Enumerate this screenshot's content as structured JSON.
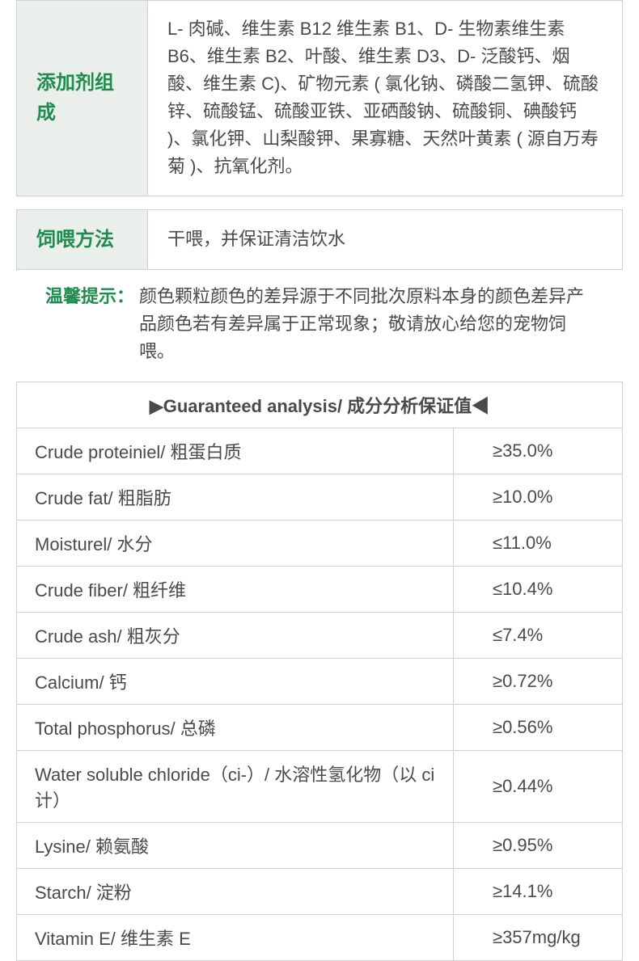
{
  "info_table_1": {
    "label": "添加剂组成",
    "value": "L- 肉碱、维生素 B12 维生素 B1、D- 生物素维生素 B6、维生素 B2、叶酸、维生素 D3、D- 泛酸钙、烟酸、维生素 C)、矿物元素 ( 氯化钠、磷酸二氢钾、硫酸锌、硫酸锰、硫酸亚铁、亚硒酸钠、硫酸铜、碘酸钙 )、氯化钾、山梨酸钾、果寡糖、天然叶黄素 ( 源自万寿菊 )、抗氧化剂。"
  },
  "info_table_2": {
    "label": "饲喂方法",
    "value": "干喂，并保证清洁饮水"
  },
  "tip": {
    "label": "温馨提示：",
    "text": "颜色颗粒颜色的差异源于不同批次原料本身的颜色差异产品颜色若有差异属于正常现象；敬请放心给您的宠物饲喂。"
  },
  "analysis": {
    "header": "▶Guaranteed analysis/ 成分分析保证值◀",
    "rows": [
      {
        "name": "Crude proteiniel/ 粗蛋白质",
        "val": "≥35.0%"
      },
      {
        "name": "Crude fat/ 粗脂肪",
        "val": "≥10.0%"
      },
      {
        "name": "Moisturel/ 水分",
        "val": "≤11.0%"
      },
      {
        "name": "Crude fiber/ 粗纤维",
        "val": "≤10.4%"
      },
      {
        "name": "Crude ash/ 粗灰分",
        "val": "≤7.4%"
      },
      {
        "name": "Calcium/ 钙",
        "val": "≥0.72%"
      },
      {
        "name": "Total phosphorus/ 总磷",
        "val": "≥0.56%"
      },
      {
        "name": "Water soluble chloride（ci-）/ 水溶性氢化物（以 ci 计）",
        "val": "≥0.44%"
      },
      {
        "name": "Lysine/ 赖氨酸",
        "val": "≥0.95%"
      },
      {
        "name": "Starch/ 淀粉",
        "val": "≥14.1%"
      },
      {
        "name": "Vitamin E/ 维生素 E",
        "val": "≥357mg/kg"
      }
    ]
  },
  "colors": {
    "green_text": "#1e8c4d",
    "green_bg": "#3da066",
    "light_green_bg": "#ebefec",
    "border": "#d0d0d0",
    "body_text": "#4a4a4a"
  }
}
